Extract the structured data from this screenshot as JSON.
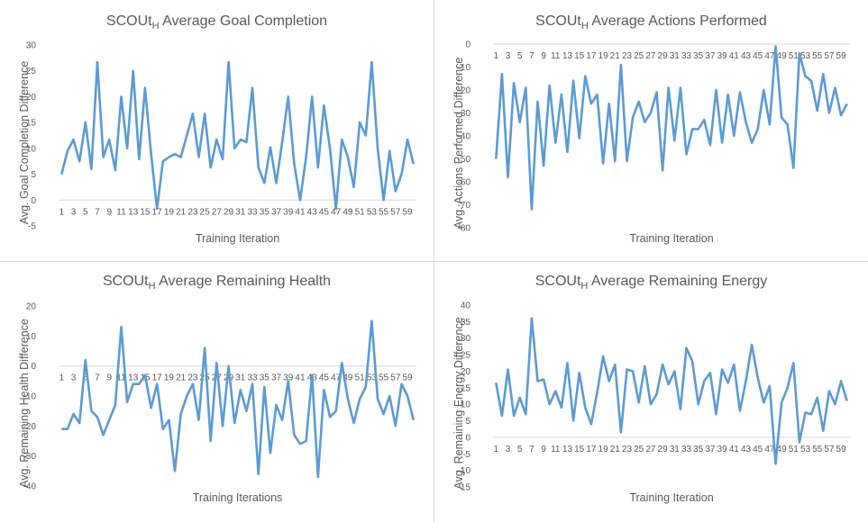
{
  "chart_data": [
    {
      "type": "line",
      "title": {
        "main": "SCOUt",
        "sub": "H",
        "rest": " Average Goal Completion"
      },
      "xlabel": "Training Iteration",
      "ylabel": "Avg. Goal Completion Difference",
      "ylim": [
        -5,
        30
      ],
      "ytick_step": 5,
      "x_tick_labels": [
        "1",
        "3",
        "5",
        "7",
        "9",
        "11",
        "13",
        "15",
        "17",
        "19",
        "21",
        "23",
        "25",
        "27",
        "29",
        "31",
        "33",
        "35",
        "37",
        "39",
        "41",
        "43",
        "45",
        "47",
        "49",
        "51",
        "53",
        "55",
        "57",
        "59"
      ],
      "series": [
        {
          "color": "#5b9bd5",
          "values": [
            5,
            9.5,
            11.7,
            7.5,
            15,
            6,
            26.7,
            8.3,
            11.7,
            5.8,
            20,
            10,
            25,
            7.9,
            21.7,
            9,
            -1.7,
            7.5,
            8.3,
            8.9,
            8.3,
            12.5,
            16.7,
            8.3,
            16.7,
            6.3,
            11.7,
            7.9,
            26.7,
            10,
            11.7,
            11.2,
            21.7,
            6.3,
            3.3,
            10.2,
            3.3,
            11.2,
            20,
            7,
            0,
            8.3,
            20,
            6.3,
            18.3,
            10,
            -1.7,
            11.7,
            8.3,
            2.5,
            15,
            12.5,
            26.7,
            10,
            0,
            9.5,
            1.7,
            5,
            11.7,
            7
          ]
        }
      ]
    },
    {
      "type": "line",
      "title": {
        "main": "SCOUt",
        "sub": "H",
        "rest": " Average Actions Performed"
      },
      "xlabel": "Training Iteration",
      "ylabel": "Avg. Actions Performed Difference",
      "ylim": [
        -80,
        0
      ],
      "ytick_step": 10,
      "x_tick_labels": [
        "1",
        "3",
        "5",
        "7",
        "9",
        "11",
        "13",
        "15",
        "17",
        "19",
        "21",
        "23",
        "25",
        "27",
        "29",
        "31",
        "33",
        "35",
        "37",
        "39",
        "41",
        "43",
        "45",
        "47",
        "49",
        "51",
        "53",
        "55",
        "57",
        "59"
      ],
      "series": [
        {
          "color": "#5b9bd5",
          "values": [
            -50,
            -13,
            -58,
            -17,
            -34,
            -19,
            -72,
            -25,
            -53,
            -18,
            -43,
            -22,
            -47,
            -16,
            -41,
            -14,
            -26,
            -22,
            -52,
            -26,
            -51,
            -9,
            -51,
            -32,
            -25,
            -34,
            -30,
            -21,
            -55,
            -19,
            -42,
            -19,
            -48,
            -37,
            -37,
            -33,
            -44,
            -20,
            -43,
            -22,
            -40,
            -21,
            -34,
            -43,
            -37,
            -20,
            -35,
            -1,
            -32,
            -35,
            -54,
            -4,
            -14,
            -16,
            -29,
            -13,
            -30,
            -19,
            -31,
            -26
          ]
        }
      ]
    },
    {
      "type": "line",
      "title": {
        "main": "SCOUt",
        "sub": "H",
        "rest": " Average Remaining Health"
      },
      "xlabel": "Training Iterations",
      "ylabel": "Avg. Remaining Health Difference",
      "ylim": [
        -40,
        20
      ],
      "ytick_step": 10,
      "x_tick_labels": [
        "1",
        "3",
        "5",
        "7",
        "9",
        "11",
        "13",
        "15",
        "17",
        "19",
        "21",
        "23",
        "25",
        "27",
        "29",
        "31",
        "33",
        "35",
        "37",
        "39",
        "41",
        "43",
        "45",
        "47",
        "49",
        "51",
        "53",
        "55",
        "57",
        "59"
      ],
      "series": [
        {
          "color": "#5b9bd5",
          "values": [
            -21,
            -21,
            -16,
            -19,
            2,
            -15,
            -17,
            -23,
            -18,
            -13,
            13,
            -12,
            -6,
            -6,
            -3,
            -14,
            -6,
            -21,
            -18,
            -35,
            -16,
            -10,
            -6,
            -18,
            6,
            -25,
            1,
            -20,
            0,
            -19,
            -8,
            -15,
            -6,
            -36,
            -7,
            -29,
            -13,
            -18,
            -5,
            -23,
            -26,
            -25,
            -3,
            -37,
            -8,
            -17,
            -15,
            1,
            -11,
            -19,
            -11,
            -7,
            15,
            -11,
            -16,
            -10,
            -20,
            -6,
            -10,
            -18
          ]
        }
      ]
    },
    {
      "type": "line",
      "title": {
        "main": "SCOUt",
        "sub": "H",
        "rest": " Average Remaining Energy"
      },
      "xlabel": "Training Iteration",
      "ylabel": "Avg. Remaining Energy Difference",
      "ylim": [
        -15,
        40
      ],
      "ytick_step": 5,
      "x_tick_labels": [
        "1",
        "3",
        "5",
        "7",
        "9",
        "11",
        "13",
        "15",
        "17",
        "19",
        "21",
        "23",
        "25",
        "27",
        "29",
        "31",
        "33",
        "35",
        "37",
        "39",
        "41",
        "43",
        "45",
        "47",
        "49",
        "51",
        "53",
        "55",
        "57",
        "59"
      ],
      "series": [
        {
          "color": "#5b9bd5",
          "values": [
            16.5,
            6.5,
            20.5,
            6.5,
            12,
            7,
            36,
            17,
            17.5,
            10,
            14,
            9,
            22.5,
            5,
            19.5,
            9,
            4,
            13.5,
            24.5,
            17,
            22,
            1.5,
            20.5,
            20,
            10.5,
            21.5,
            10,
            13,
            22,
            16,
            20,
            8.5,
            27,
            23,
            10,
            17,
            19.5,
            7,
            20.5,
            16.5,
            22,
            8,
            17,
            28,
            18,
            10.5,
            15.5,
            -8,
            10.5,
            15,
            22.5,
            -1.5,
            7.5,
            7,
            12,
            2,
            14,
            10,
            17,
            11
          ]
        }
      ]
    }
  ]
}
